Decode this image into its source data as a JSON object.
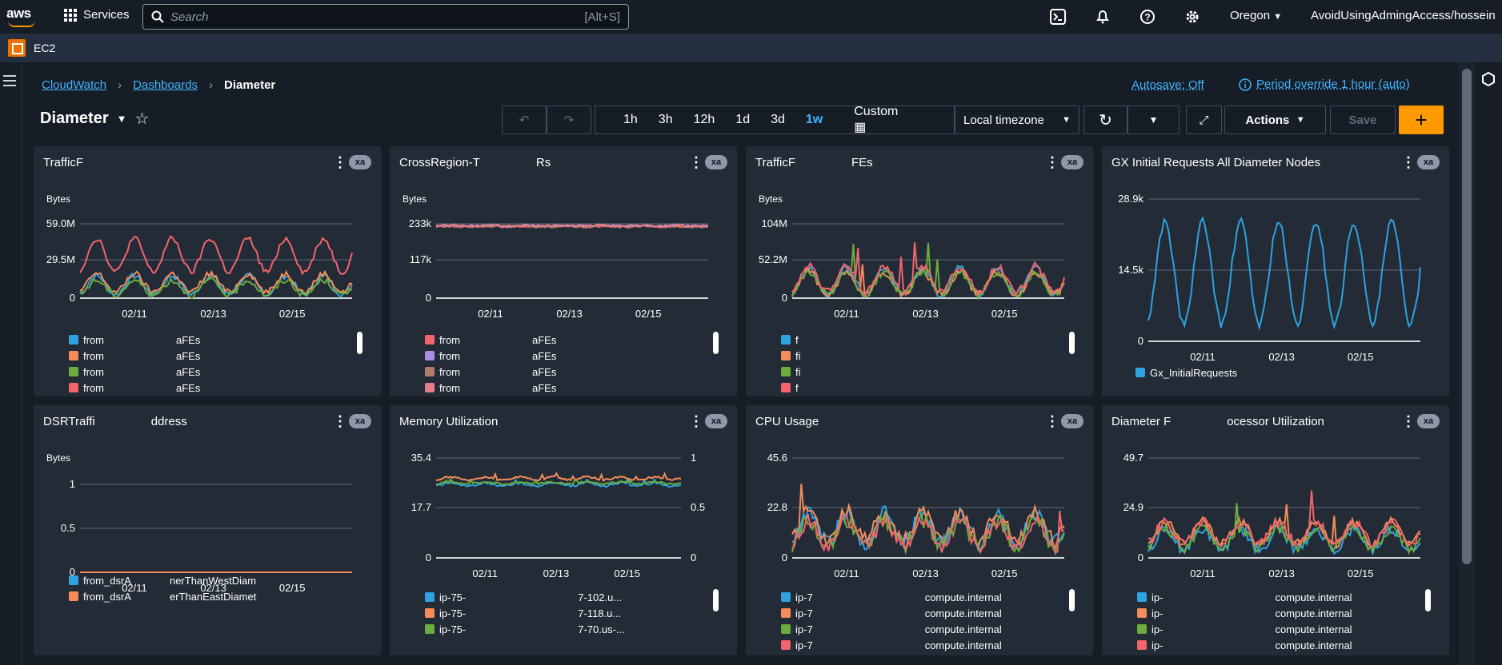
{
  "topbar": {
    "logo_text": "aws",
    "services_label": "Services",
    "search_placeholder": "Search",
    "search_shortcut": "[Alt+S]",
    "region": "Oregon",
    "account": "AvoidUsingAdmingAccess/hossein"
  },
  "subbar": {
    "service": "EC2"
  },
  "breadcrumb": {
    "items": [
      "CloudWatch",
      "Dashboards"
    ],
    "current": "Diameter"
  },
  "header": {
    "autosave": "Autosave: Off",
    "period_override": "Period override 1 hour (auto)",
    "title": "Diameter"
  },
  "toolbar": {
    "ranges": [
      "1h",
      "3h",
      "12h",
      "1d",
      "3d",
      "1w"
    ],
    "active_range": "1w",
    "custom_label": "Custom",
    "timezone": "Local timezone",
    "actions_label": "Actions",
    "save_label": "Save"
  },
  "widgets": [
    {
      "title": "TrafficF",
      "badge": "xa",
      "units": "Bytes",
      "yticks": [
        "59.0M",
        "29.5M",
        "0"
      ],
      "xticks": [
        "02/11",
        "02/13",
        "02/15"
      ],
      "legend": [
        {
          "left": "from",
          "right": "aFEs",
          "color": "#2ea3e0"
        },
        {
          "left": "from",
          "right": "aFEs",
          "color": "#f58c5a"
        },
        {
          "left": "from",
          "right": "aFEs",
          "color": "#6aad3d"
        },
        {
          "left": "from",
          "right": "aFEs",
          "color": "#f3646c"
        }
      ]
    },
    {
      "title": "CrossRegion-T",
      "title_right": "Rs",
      "badge": "xa",
      "units": "Bytes",
      "yticks": [
        "233k",
        "117k",
        "0"
      ],
      "xticks": [
        "02/11",
        "02/13",
        "02/15"
      ],
      "legend": [
        {
          "left": "from",
          "right": "aFEs",
          "color": "#f3646c"
        },
        {
          "left": "from",
          "right": "aFEs",
          "color": "#a98de0"
        },
        {
          "left": "from",
          "right": "aFEs",
          "color": "#b07a6e"
        },
        {
          "left": "from",
          "right": "aFEs",
          "color": "#e57d8d"
        }
      ]
    },
    {
      "title": "TrafficF",
      "title_right": "FEs",
      "badge": "xa",
      "units": "Bytes",
      "yticks": [
        "104M",
        "52.2M",
        "0"
      ],
      "xticks": [
        "02/11",
        "02/13",
        "02/15"
      ],
      "legend": [
        {
          "left": "f",
          "right": "",
          "color": "#2ea3e0"
        },
        {
          "left": "fi",
          "right": "",
          "color": "#f58c5a"
        },
        {
          "left": "fi",
          "right": "",
          "color": "#6aad3d"
        },
        {
          "left": "f",
          "right": "",
          "color": "#f3646c"
        }
      ]
    },
    {
      "title": "GX Initial Requests All Diameter Nodes",
      "badge": "xa",
      "units": "",
      "yticks": [
        "28.9k",
        "14.5k",
        "0"
      ],
      "xticks": [
        "02/11",
        "02/13",
        "02/15"
      ],
      "legend": [
        {
          "left": "Gx_InitialRequests",
          "right": "",
          "color": "#2ea3e0"
        }
      ]
    },
    {
      "title": "DSRTraffi",
      "title_right": "ddress",
      "badge": "xa",
      "units": "Bytes",
      "yticks": [
        "1",
        "0.5",
        "0"
      ],
      "xticks": [
        "02/11",
        "02/13",
        "02/15"
      ],
      "legend": [
        {
          "left": "from_dsrA",
          "right": "nerThanWestDiam",
          "color": "#2ea3e0"
        },
        {
          "left": "from_dsrA",
          "right": "erThanEastDiamet",
          "color": "#f58c5a"
        }
      ]
    },
    {
      "title": "Memory Utilization",
      "badge": "xa",
      "units": "",
      "yticks": [
        "35.4",
        "17.7",
        "0"
      ],
      "y2ticks": [
        "1",
        "0.5",
        "0"
      ],
      "xticks": [
        "02/11",
        "02/13",
        "02/15"
      ],
      "legend": [
        {
          "left": "ip-75-",
          "right": "7-102.u...",
          "color": "#2ea3e0"
        },
        {
          "left": "ip-75-",
          "right": "7-118.u...",
          "color": "#f58c5a"
        },
        {
          "left": "ip-75-",
          "right": "7-70.us-...",
          "color": "#6aad3d"
        }
      ]
    },
    {
      "title": "CPU Usage",
      "badge": "xa",
      "units": "",
      "yticks": [
        "45.6",
        "22.8",
        "0"
      ],
      "xticks": [
        "02/11",
        "02/13",
        "02/15"
      ],
      "legend": [
        {
          "left": "ip-7",
          "right": "compute.internal",
          "color": "#2ea3e0"
        },
        {
          "left": "ip-7",
          "right": "compute.internal",
          "color": "#f58c5a"
        },
        {
          "left": "ip-7",
          "right": "compute.internal",
          "color": "#6aad3d"
        },
        {
          "left": "ip-7",
          "right": "compute.internal",
          "color": "#f3646c"
        }
      ]
    },
    {
      "title": "Diameter F",
      "title_right": "ocessor Utilization",
      "badge": "xa",
      "units": "",
      "yticks": [
        "49.7",
        "24.9",
        "0"
      ],
      "xticks": [
        "02/11",
        "02/13",
        "02/15"
      ],
      "legend": [
        {
          "left": "ip-",
          "right": "compute.internal",
          "color": "#2ea3e0"
        },
        {
          "left": "ip-",
          "right": "compute.internal",
          "color": "#f58c5a"
        },
        {
          "left": "ip-",
          "right": "compute.internal",
          "color": "#6aad3d"
        },
        {
          "left": "ip-",
          "right": "compute.internal",
          "color": "#f3646c"
        }
      ]
    }
  ]
}
